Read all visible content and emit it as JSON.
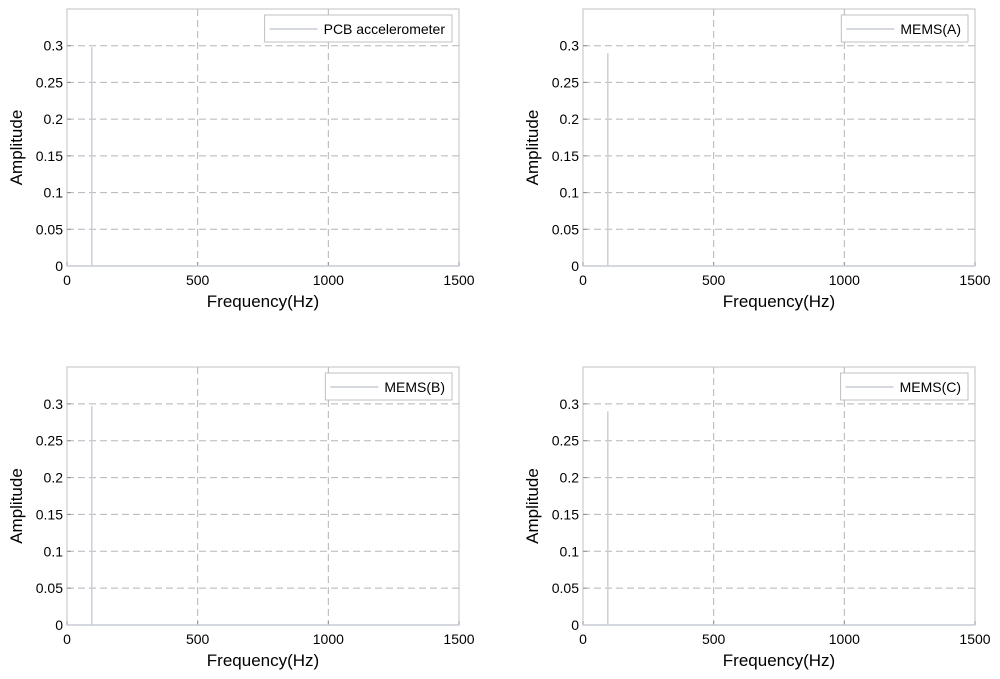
{
  "chart_data": [
    {
      "type": "line",
      "xlabel": "Frequency(Hz)",
      "ylabel": "Amplitude",
      "xlim": [
        0,
        1500
      ],
      "ylim": [
        0,
        0.35
      ],
      "xticks": [
        0,
        500,
        1000,
        1500
      ],
      "yticks": [
        0,
        0.05,
        0.1,
        0.15,
        0.2,
        0.25,
        0.3
      ],
      "ytick_labels": [
        "0",
        "0.05",
        "0.1",
        "0.15",
        "0.2",
        "0.25",
        "0.3"
      ],
      "grid": true,
      "legend_position": "top-right",
      "series": [
        {
          "name": "PCB accelerometer",
          "color": "#c9ccd6",
          "x": [
            0,
            95,
            95,
            95,
            1500
          ],
          "y": [
            0,
            0,
            0.298,
            0,
            0
          ]
        }
      ]
    },
    {
      "type": "line",
      "xlabel": "Frequency(Hz)",
      "ylabel": "Amplitude",
      "xlim": [
        0,
        1500
      ],
      "ylim": [
        0,
        0.35
      ],
      "xticks": [
        0,
        500,
        1000,
        1500
      ],
      "yticks": [
        0,
        0.05,
        0.1,
        0.15,
        0.2,
        0.25,
        0.3
      ],
      "ytick_labels": [
        "0",
        "0.05",
        "0.1",
        "0.15",
        "0.2",
        "0.25",
        "0.3"
      ],
      "grid": true,
      "legend_position": "top-right",
      "series": [
        {
          "name": "MEMS(A)",
          "color": "#c9ccd6",
          "x": [
            0,
            95,
            95,
            95,
            1500
          ],
          "y": [
            0,
            0,
            0.29,
            0,
            0
          ]
        }
      ]
    },
    {
      "type": "line",
      "xlabel": "Frequency(Hz)",
      "ylabel": "Amplitude",
      "xlim": [
        0,
        1500
      ],
      "ylim": [
        0,
        0.35
      ],
      "xticks": [
        0,
        500,
        1000,
        1500
      ],
      "yticks": [
        0,
        0.05,
        0.1,
        0.15,
        0.2,
        0.25,
        0.3
      ],
      "ytick_labels": [
        "0",
        "0.05",
        "0.1",
        "0.15",
        "0.2",
        "0.25",
        "0.3"
      ],
      "grid": true,
      "legend_position": "top-right",
      "series": [
        {
          "name": "MEMS(B)",
          "color": "#c9ccd6",
          "x": [
            0,
            95,
            95,
            95,
            1500
          ],
          "y": [
            0,
            0,
            0.297,
            0,
            0
          ]
        }
      ]
    },
    {
      "type": "line",
      "xlabel": "Frequency(Hz)",
      "ylabel": "Amplitude",
      "xlim": [
        0,
        1500
      ],
      "ylim": [
        0,
        0.35
      ],
      "xticks": [
        0,
        500,
        1000,
        1500
      ],
      "yticks": [
        0,
        0.05,
        0.1,
        0.15,
        0.2,
        0.25,
        0.3
      ],
      "ytick_labels": [
        "0",
        "0.05",
        "0.1",
        "0.15",
        "0.2",
        "0.25",
        "0.3"
      ],
      "grid": true,
      "legend_position": "top-right",
      "series": [
        {
          "name": "MEMS(C)",
          "color": "#c9ccd6",
          "x": [
            0,
            95,
            95,
            95,
            1500
          ],
          "y": [
            0,
            0,
            0.29,
            0,
            0
          ]
        }
      ]
    }
  ]
}
